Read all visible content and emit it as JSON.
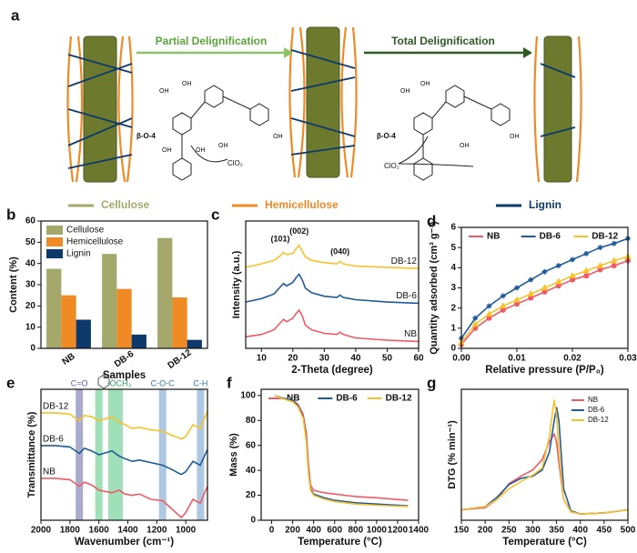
{
  "diagram": {
    "panel_label": "a",
    "arrow_labels": [
      "Partial Delignification",
      "Total Delignification"
    ],
    "legend": [
      {
        "name": "Cellulose",
        "color": "#a4a86a"
      },
      {
        "name": "Hemicellulose",
        "color": "#f08a24"
      },
      {
        "name": "Lignin",
        "color": "#0d3a6b"
      }
    ],
    "bond_labels": [
      "β-O-4",
      "β-O-4"
    ],
    "oxidant_labels": [
      "ClO₂",
      "ClO₂"
    ],
    "group_labels": [
      "OH",
      "OH",
      "OH",
      "OH",
      "OH",
      "OH",
      "OH",
      "OH",
      "OH",
      "OH"
    ]
  },
  "chart_data": [
    {
      "type": "bar",
      "panel_label": "b",
      "categories": [
        "NB",
        "DB-6",
        "DB-12"
      ],
      "series": [
        {
          "name": "Cellulose",
          "color": "#a4a86a",
          "values": [
            37.5,
            44.5,
            52
          ]
        },
        {
          "name": "Hemicellulose",
          "color": "#f08a24",
          "values": [
            25,
            28,
            24
          ]
        },
        {
          "name": "Lignin",
          "color": "#0d3a6b",
          "values": [
            13.5,
            6.5,
            4
          ]
        }
      ],
      "ylim": [
        0,
        60
      ],
      "yticks": [
        0,
        10,
        20,
        30,
        40,
        50,
        60
      ],
      "ylabel": "Content (%)",
      "xlabel": "Samples",
      "legend": "upper left"
    },
    {
      "type": "line",
      "panel_label": "c",
      "x": [
        5,
        10,
        14,
        16,
        17,
        18,
        20,
        21,
        22,
        23,
        24,
        26,
        30,
        34,
        35,
        36,
        40,
        50,
        60
      ],
      "series": [
        {
          "name": "NB",
          "color": "#f05a66",
          "values": [
            1.0,
            1.2,
            1.6,
            2.2,
            2.5,
            2.3,
            2.6,
            3.0,
            3.3,
            2.8,
            2.0,
            1.6,
            1.3,
            1.2,
            1.4,
            1.2,
            0.9,
            0.7,
            0.6
          ]
        },
        {
          "name": "DB-6",
          "color": "#1f5a99",
          "values": [
            4.0,
            4.3,
            4.7,
            5.3,
            5.6,
            5.4,
            5.7,
            6.1,
            6.4,
            5.9,
            5.2,
            4.8,
            4.5,
            4.4,
            4.6,
            4.4,
            4.2,
            4.0,
            3.9
          ]
        },
        {
          "name": "DB-12",
          "color": "#f5c32c",
          "values": [
            7.0,
            7.3,
            7.6,
            8.0,
            8.3,
            8.1,
            8.2,
            8.6,
            8.9,
            8.4,
            7.9,
            7.6,
            7.4,
            7.3,
            7.5,
            7.3,
            7.1,
            7.0,
            6.9
          ]
        }
      ],
      "annotations": [
        {
          "text": "(101)",
          "x": 16,
          "y": 9.4
        },
        {
          "text": "(002)",
          "x": 22,
          "y": 10.1
        },
        {
          "text": "(040)",
          "x": 35,
          "y": 8.3
        }
      ],
      "xlim": [
        5,
        60
      ],
      "xticks": [
        10,
        20,
        30,
        40,
        50,
        60
      ],
      "ylim": [
        0,
        11
      ],
      "yticks": [],
      "xlabel": "2-Theta (degree)",
      "ylabel": "Intensity (a.u.)",
      "legend": "inline-right"
    },
    {
      "type": "line",
      "panel_label": "d",
      "x": [
        0,
        0.0025,
        0.005,
        0.0075,
        0.01,
        0.0125,
        0.015,
        0.0175,
        0.02,
        0.0225,
        0.025,
        0.0275,
        0.03
      ],
      "series": [
        {
          "name": "NB",
          "color": "#f05a66",
          "marker": "circle",
          "values": [
            0.2,
            1.0,
            1.5,
            1.9,
            2.2,
            2.5,
            2.8,
            3.1,
            3.4,
            3.6,
            3.9,
            4.1,
            4.35
          ]
        },
        {
          "name": "DB-6",
          "color": "#1f5a99",
          "marker": "star",
          "values": [
            0.5,
            1.5,
            2.1,
            2.6,
            3.0,
            3.4,
            3.8,
            4.1,
            4.4,
            4.7,
            5.0,
            5.2,
            5.45
          ]
        },
        {
          "name": "DB-12",
          "color": "#f5c32c",
          "marker": "triangle",
          "values": [
            0.3,
            1.2,
            1.7,
            2.1,
            2.4,
            2.7,
            3.0,
            3.3,
            3.6,
            3.85,
            4.1,
            4.35,
            4.55
          ]
        }
      ],
      "xlim": [
        0,
        0.03
      ],
      "xticks": [
        {
          "value": 0,
          "label": "0.00"
        },
        0.01,
        0.02,
        0.03
      ],
      "ylim": [
        0,
        6
      ],
      "yticks": [
        0,
        1,
        2,
        3,
        4,
        5,
        6
      ],
      "xlabel": "Relative pressure (P/P₀)",
      "ylabel": "Quantity adsorbed (cm³ g⁻¹)",
      "legend": "top-row"
    },
    {
      "type": "line",
      "panel_label": "e",
      "x": [
        2000,
        1900,
        1800,
        1735,
        1700,
        1650,
        1600,
        1510,
        1460,
        1420,
        1370,
        1320,
        1240,
        1160,
        1100,
        1050,
        1030,
        1000,
        950,
        900,
        850
      ],
      "series": [
        {
          "name": "DB-12",
          "color": "#f5c32c",
          "values": [
            8.2,
            8.2,
            8.1,
            7.6,
            8.0,
            7.9,
            7.6,
            7.9,
            7.5,
            7.3,
            7.0,
            7.1,
            6.9,
            6.8,
            6.5,
            6.3,
            6.2,
            6.4,
            7.3,
            7.0,
            8.3
          ]
        },
        {
          "name": "DB-6",
          "color": "#1f5a99",
          "values": [
            5.7,
            5.7,
            5.6,
            5.1,
            5.5,
            5.3,
            5.0,
            5.3,
            4.9,
            4.7,
            4.5,
            4.6,
            4.4,
            4.2,
            3.9,
            3.6,
            3.5,
            3.7,
            4.5,
            4.2,
            5.4
          ]
        },
        {
          "name": "NB",
          "color": "#f05a66",
          "values": [
            3.2,
            3.2,
            3.1,
            2.6,
            2.9,
            2.7,
            2.3,
            2.1,
            2.3,
            2.0,
            1.9,
            2.0,
            1.6,
            1.5,
            0.9,
            0.4,
            0.2,
            0.6,
            1.6,
            1.3,
            2.6
          ]
        }
      ],
      "bands": [
        {
          "x": 1735,
          "color": "#8e8fb8",
          "label": "C=O"
        },
        {
          "x": 1600,
          "color": "#7fd6a0"
        },
        {
          "x": 1510,
          "color": "#7fd6a0"
        },
        {
          "x": 1460,
          "color": "#7fd6a0",
          "label": "-OCH₃"
        },
        {
          "x": 1160,
          "color": "#93b6d8",
          "label": "C-O-C"
        },
        {
          "x": 898,
          "color": "#93b6d8",
          "label": "C-H"
        }
      ],
      "xlim": [
        2000,
        850
      ],
      "xticks": [
        2000,
        1800,
        1600,
        1400,
        1200,
        1000
      ],
      "ylim": [
        0,
        10
      ],
      "yticks": [],
      "xlabel": "Wavenumber (cm⁻¹)",
      "ylabel": "Transmittance (%)",
      "legend": "inline-left"
    },
    {
      "type": "line",
      "panel_label": "f",
      "x": [
        30,
        100,
        200,
        250,
        300,
        330,
        350,
        370,
        400,
        500,
        600,
        800,
        1000,
        1300
      ],
      "series": [
        {
          "name": "NB",
          "color": "#f05a66",
          "values": [
            100,
            98,
            96,
            93,
            85,
            70,
            45,
            28,
            24,
            22,
            21,
            19,
            18,
            16
          ]
        },
        {
          "name": "DB-6",
          "color": "#1f5a99",
          "values": [
            100,
            98,
            96,
            92,
            83,
            65,
            40,
            25,
            21,
            18,
            16,
            14,
            13,
            11.5
          ]
        },
        {
          "name": "DB-12",
          "color": "#f5c32c",
          "values": [
            100,
            97.5,
            95,
            91,
            82,
            63,
            38,
            24,
            20,
            17,
            15,
            13,
            12,
            11
          ]
        }
      ],
      "xlim": [
        -100,
        1400
      ],
      "xticks": [
        0,
        200,
        400,
        600,
        800,
        1000,
        1200,
        1400
      ],
      "ylim": [
        0,
        105
      ],
      "yticks": [
        0,
        20,
        40,
        60,
        80,
        100
      ],
      "xlabel": "Temperature (°C)",
      "ylabel": "Mass (%)",
      "legend": "top-row"
    },
    {
      "type": "line",
      "panel_label": "g",
      "x": [
        150,
        200,
        225,
        250,
        275,
        300,
        320,
        335,
        345,
        350,
        355,
        365,
        380,
        400,
        450,
        500
      ],
      "series": [
        {
          "name": "NB",
          "color": "#f05a66",
          "values": [
            1.0,
            1.2,
            2.0,
            3.5,
            4.2,
            4.8,
            5.8,
            7.5,
            8.2,
            7.5,
            5.5,
            2.0,
            0.8,
            0.6,
            0.7,
            1.0
          ]
        },
        {
          "name": "DB-6",
          "color": "#1f5a99",
          "values": [
            1.0,
            1.3,
            2.2,
            3.4,
            4.0,
            4.2,
            4.8,
            6.5,
            9.5,
            10.8,
            9.5,
            3.0,
            0.9,
            0.6,
            0.7,
            1.0
          ]
        },
        {
          "name": "DB-12",
          "color": "#f5c32c",
          "values": [
            1.0,
            1.3,
            2.0,
            3.0,
            3.7,
            4.3,
            5.0,
            8.0,
            11.5,
            10.0,
            6.5,
            2.0,
            0.8,
            0.6,
            0.7,
            1.0
          ]
        }
      ],
      "xlim": [
        150,
        500
      ],
      "xticks": [
        150,
        200,
        250,
        300,
        350,
        400,
        450,
        500
      ],
      "ylim": [
        0,
        12.5
      ],
      "yticks": [],
      "xlabel": "Temperature (°C)",
      "ylabel": "DTG (% min⁻¹)",
      "legend": "upper right"
    }
  ]
}
